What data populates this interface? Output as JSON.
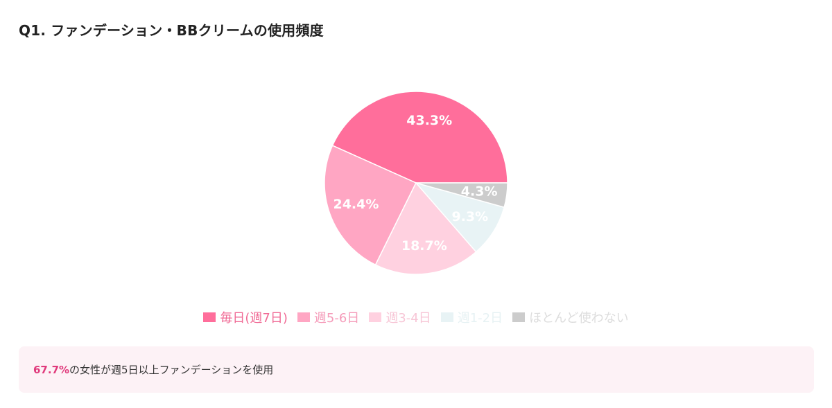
{
  "title": "Q1. ファンデーション・BBクリームの使用頻度",
  "chart_data": {
    "type": "pie",
    "start_angle_deg": 0,
    "direction": "counterclockwise",
    "slices": [
      {
        "label": "毎日(週7日)",
        "value": 43.3,
        "value_label": "43.3%",
        "color": "#ff6e9b",
        "legend_text_color": "#f06a95"
      },
      {
        "label": "週5-6日",
        "value": 24.4,
        "value_label": "24.4%",
        "color": "#ffa6c3",
        "legend_text_color": "#f59bb9"
      },
      {
        "label": "週3-4日",
        "value": 18.7,
        "value_label": "18.7%",
        "color": "#ffd1e0",
        "legend_text_color": "#f7c6d6"
      },
      {
        "label": "週1-2日",
        "value": 9.3,
        "value_label": "9.3%",
        "color": "#e8f3f5",
        "legend_text_color": "#e6f1f3"
      },
      {
        "label": "ほとんど使わない",
        "value": 4.3,
        "value_label": "4.3%",
        "color": "#cccccc",
        "legend_text_color": "#dddddd"
      }
    ]
  },
  "summary": {
    "highlight": "67.7%",
    "text": "の女性が週5日以上ファンデーションを使用"
  }
}
